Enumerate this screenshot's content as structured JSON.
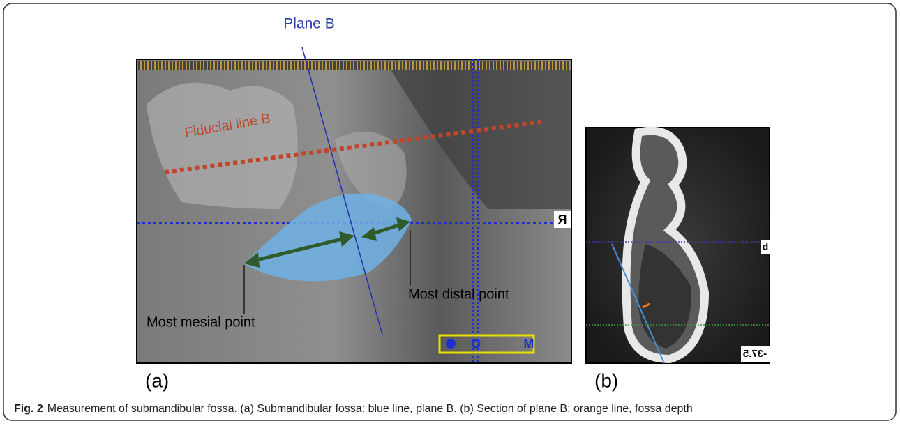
{
  "panel_a": {
    "labels": {
      "plane": "Plane B",
      "fiducial": "Fiducial line B",
      "distal": "Most distal point",
      "mesial": "Most mesial point",
      "orientation": "R",
      "marker": "M"
    },
    "caption": "(a)"
  },
  "panel_b": {
    "labels": {
      "section": "b",
      "coordinate": "-37.5"
    },
    "caption": "(b)"
  },
  "figure_caption": {
    "label": "Fig. 2",
    "text": "Measurement of submandibular fossa. (a) Submandibular fossa: blue line, plane B. (b) Section of plane B: orange line, fossa depth"
  }
}
